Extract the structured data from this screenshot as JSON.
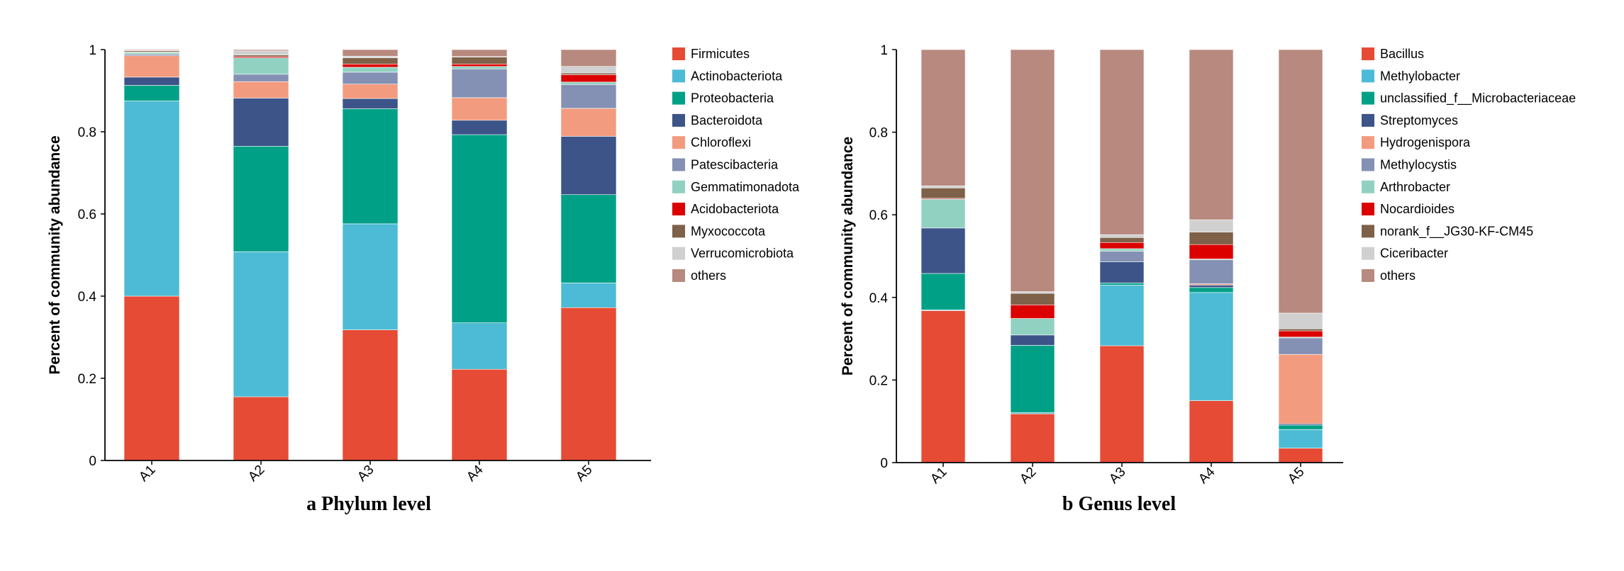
{
  "chart_data": [
    {
      "type": "bar",
      "stacked": true,
      "caption": "a Phylum level",
      "ylabel": "Percent of community abundance",
      "xlabel": "",
      "ylim": [
        0,
        1
      ],
      "yticks": [
        "0",
        "0.2",
        "0.4",
        "0.6",
        "0.8",
        "1"
      ],
      "categories": [
        "A1",
        "A2",
        "A3",
        "A4",
        "A5"
      ],
      "legend_position": "right",
      "series": [
        {
          "name": "Firmicutes",
          "color": "#E64B35",
          "values": [
            0.4,
            0.155,
            0.318,
            0.222,
            0.372
          ]
        },
        {
          "name": "Actinobacteriota",
          "color": "#4DBBD5",
          "values": [
            0.475,
            0.353,
            0.258,
            0.113,
            0.06
          ]
        },
        {
          "name": "Proteobacteria",
          "color": "#00A087",
          "values": [
            0.038,
            0.257,
            0.28,
            0.458,
            0.215
          ]
        },
        {
          "name": "Bacteroidota",
          "color": "#3C5488",
          "values": [
            0.02,
            0.117,
            0.025,
            0.035,
            0.142
          ]
        },
        {
          "name": "Chloroflexi",
          "color": "#F39B7F",
          "values": [
            0.052,
            0.04,
            0.035,
            0.055,
            0.068
          ]
        },
        {
          "name": "Patescibacteria",
          "color": "#8491B4",
          "values": [
            0.004,
            0.018,
            0.029,
            0.07,
            0.058
          ]
        },
        {
          "name": "Gemmatimonadota",
          "color": "#91D1C2",
          "values": [
            0.004,
            0.04,
            0.012,
            0.006,
            0.006
          ]
        },
        {
          "name": "Acidobacteriota",
          "color": "#DC0000",
          "values": [
            0.001,
            0.003,
            0.008,
            0.006,
            0.018
          ]
        },
        {
          "name": "Myxococcota",
          "color": "#7E6148",
          "values": [
            0.003,
            0.004,
            0.015,
            0.017,
            0.004
          ]
        },
        {
          "name": "Verrucomicrobiota",
          "color": "#D0D0D0",
          "values": [
            0.001,
            0.01,
            0.004,
            0.001,
            0.016
          ]
        },
        {
          "name": "others",
          "color": "#B8897F",
          "values": [
            0.002,
            0.003,
            0.016,
            0.017,
            0.041
          ]
        }
      ]
    },
    {
      "type": "bar",
      "stacked": true,
      "caption": "b Genus level",
      "ylabel": "Percent of community abundance",
      "xlabel": "",
      "ylim": [
        0,
        1
      ],
      "yticks": [
        "0",
        "0.2",
        "0.4",
        "0.6",
        "0.8",
        "1"
      ],
      "categories": [
        "A1",
        "A2",
        "A3",
        "A4",
        "A5"
      ],
      "legend_position": "right",
      "series": [
        {
          "name": "Bacillus",
          "color": "#E64B35",
          "values": [
            0.368,
            0.118,
            0.283,
            0.15,
            0.035
          ]
        },
        {
          "name": "Methylobacter",
          "color": "#4DBBD5",
          "values": [
            0.002,
            0.003,
            0.147,
            0.262,
            0.045
          ]
        },
        {
          "name": "unclassified_f__Microbacteriaceae",
          "color": "#00A087",
          "values": [
            0.088,
            0.163,
            0.005,
            0.012,
            0.011
          ]
        },
        {
          "name": "Streptomyces",
          "color": "#3C5488",
          "values": [
            0.11,
            0.025,
            0.051,
            0.006,
            0.003
          ]
        },
        {
          "name": "Hydrogenispora",
          "color": "#F39B7F",
          "values": [
            0.0,
            0.0,
            0.0,
            0.003,
            0.168
          ]
        },
        {
          "name": "Methylocystis",
          "color": "#8491B4",
          "values": [
            0.0,
            0.0,
            0.026,
            0.058,
            0.04
          ]
        },
        {
          "name": "Arthrobacter",
          "color": "#91D1C2",
          "values": [
            0.07,
            0.04,
            0.006,
            0.002,
            0.002
          ]
        },
        {
          "name": "Nocardioides",
          "color": "#DC0000",
          "values": [
            0.002,
            0.033,
            0.015,
            0.035,
            0.015
          ]
        },
        {
          "name": "norank_f__JG30-KF-CM45",
          "color": "#7E6148",
          "values": [
            0.025,
            0.028,
            0.012,
            0.03,
            0.005
          ]
        },
        {
          "name": "Ciceribacter",
          "color": "#D0D0D0",
          "values": [
            0.005,
            0.004,
            0.007,
            0.03,
            0.038
          ]
        },
        {
          "name": "others",
          "color": "#B8897F",
          "values": [
            0.33,
            0.586,
            0.448,
            0.412,
            0.638
          ]
        }
      ]
    }
  ]
}
